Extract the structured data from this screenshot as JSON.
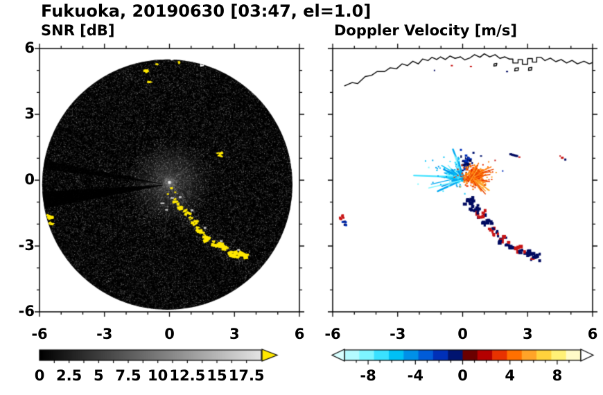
{
  "title": "Fukuoka, 20190630 [03:47, el=1.0]",
  "panels": {
    "snr": {
      "label": "SNR [dB]",
      "xticklabels": [
        "-6",
        "-3",
        "0",
        "3",
        "6"
      ],
      "yticklabels": [
        "6",
        "3",
        "0",
        "-3",
        "-6"
      ],
      "colorbar_ticklabels": [
        "0",
        "2.5",
        "5",
        "7.5",
        "10",
        "12.5",
        "15",
        "17.5"
      ]
    },
    "doppler": {
      "label": "Doppler Velocity [m/s]",
      "xticklabels": [
        "-6",
        "-3",
        "0",
        "3",
        "6"
      ],
      "colorbar_ticklabels": [
        "-8",
        "-4",
        "0",
        "4",
        "8"
      ]
    }
  },
  "chart_data": [
    {
      "type": "heatmap",
      "title": "SNR [dB]",
      "xlim": [
        -6,
        6
      ],
      "ylim": [
        -6,
        6
      ],
      "xticks": [
        -6,
        -3,
        0,
        3,
        6
      ],
      "yticks": [
        -6,
        -3,
        0,
        3,
        6
      ],
      "colorbar": {
        "range": [
          0,
          18.75
        ],
        "ticks": [
          0,
          2.5,
          5,
          7.5,
          10,
          12.5,
          15,
          17.5
        ],
        "scheme": "black-to-white grayscale with yellow overflow arrow"
      },
      "disk": {
        "center": [
          -0.1,
          -0.2
        ],
        "radius": 5.78,
        "background": "low-SNR speckle noise, brighter haze around radar at origin"
      },
      "blocked_sector_angles_deg": [
        187,
        171,
        152,
        62
      ],
      "echo_color": "#ffe800",
      "high_snr_echoes": {
        "clutter_arc": [
          [
            0.3,
            -0.95
          ],
          [
            0.55,
            -1.25
          ],
          [
            0.85,
            -1.55
          ],
          [
            1.15,
            -1.95
          ],
          [
            1.45,
            -2.35
          ],
          [
            1.8,
            -2.7
          ],
          [
            2.2,
            -2.95
          ],
          [
            2.6,
            -3.15
          ],
          [
            3.0,
            -3.35
          ],
          [
            3.35,
            -3.5
          ]
        ],
        "spots": [
          [
            2.3,
            1.15
          ],
          [
            -5.55,
            -1.7
          ],
          [
            -5.45,
            -2.0
          ],
          [
            -1.05,
            5.05
          ],
          [
            -0.92,
            4.5
          ],
          [
            -0.6,
            5.3
          ],
          [
            0.45,
            5.35
          ],
          [
            1.75,
            5.3
          ],
          [
            2.95,
            5.55
          ],
          [
            0.03,
            -0.32
          ],
          [
            0.22,
            -0.52
          ]
        ]
      },
      "coastline_color": "#ffffff",
      "coastline": {
        "main": [
          [
            -5.45,
            4.3
          ],
          [
            -5.1,
            4.45
          ],
          [
            -4.85,
            4.4
          ],
          [
            -4.5,
            4.72
          ],
          [
            -4.2,
            4.78
          ],
          [
            -3.95,
            4.95
          ],
          [
            -3.6,
            4.95
          ],
          [
            -3.35,
            5.12
          ],
          [
            -3.05,
            5.08
          ],
          [
            -2.8,
            5.3
          ],
          [
            -2.55,
            5.22
          ],
          [
            -2.3,
            5.42
          ],
          [
            -2.05,
            5.3
          ],
          [
            -1.85,
            5.52
          ],
          [
            -1.6,
            5.45
          ],
          [
            -1.42,
            5.6
          ],
          [
            -1.2,
            5.5
          ],
          [
            -1.02,
            5.62
          ],
          [
            -0.8,
            5.5
          ],
          [
            -0.58,
            5.66
          ],
          [
            -0.35,
            5.55
          ],
          [
            -0.1,
            5.62
          ],
          [
            0.1,
            5.48
          ],
          [
            0.35,
            5.58
          ],
          [
            0.55,
            5.72
          ],
          [
            0.8,
            5.6
          ],
          [
            1.0,
            5.76
          ],
          [
            1.25,
            5.62
          ],
          [
            1.5,
            5.72
          ],
          [
            1.72,
            5.55
          ],
          [
            1.95,
            5.62
          ],
          [
            2.15,
            5.52
          ]
        ],
        "harbor": [
          [
            2.15,
            5.52
          ],
          [
            2.32,
            5.52
          ],
          [
            2.32,
            5.34
          ],
          [
            2.56,
            5.34
          ],
          [
            2.56,
            5.5
          ],
          [
            2.76,
            5.5
          ],
          [
            2.76,
            5.28
          ],
          [
            3.0,
            5.28
          ],
          [
            3.0,
            5.54
          ],
          [
            3.22,
            5.54
          ],
          [
            3.22,
            5.38
          ],
          [
            3.42,
            5.38
          ],
          [
            3.42,
            5.6
          ],
          [
            3.62,
            5.6
          ],
          [
            3.8,
            5.45
          ],
          [
            4.05,
            5.56
          ],
          [
            4.3,
            5.4
          ],
          [
            4.55,
            5.5
          ],
          [
            4.8,
            5.34
          ],
          [
            5.05,
            5.46
          ],
          [
            5.3,
            5.3
          ],
          [
            5.6,
            5.42
          ],
          [
            5.85,
            5.3
          ],
          [
            6.0,
            5.36
          ]
        ],
        "islands": [
          [
            [
              2.42,
              5.1
            ],
            [
              2.58,
              5.12
            ],
            [
              2.56,
              5.0
            ],
            [
              2.4,
              4.98
            ]
          ],
          [
            [
              3.05,
              5.12
            ],
            [
              3.2,
              5.14
            ],
            [
              3.18,
              5.02
            ],
            [
              3.04,
              5.0
            ]
          ],
          [
            [
              1.45,
              5.3
            ],
            [
              1.58,
              5.32
            ],
            [
              1.56,
              5.22
            ],
            [
              1.44,
              5.2
            ]
          ]
        ]
      }
    },
    {
      "type": "scatter",
      "title": "Doppler Velocity [m/s]",
      "xlim": [
        -6,
        6
      ],
      "ylim": [
        -6,
        6
      ],
      "xticks": [
        -6,
        -3,
        0,
        3,
        6
      ],
      "yticks": [
        -6,
        -3,
        0,
        3,
        6
      ],
      "colorbar": {
        "range": [
          -10,
          10
        ],
        "ticks": [
          -8,
          -4,
          0,
          4,
          8
        ],
        "colors": [
          "#b4fbff",
          "#7df5ff",
          "#3ae1ff",
          "#00c0f5",
          "#0090e8",
          "#005cd8",
          "#0030b8",
          "#001470",
          "#6b0000",
          "#b40000",
          "#e83200",
          "#ff7000",
          "#ffa428",
          "#ffd23c",
          "#fff176",
          "#fffbc8"
        ],
        "left_arrow": "#d8ffff",
        "right_arrow": "#ffffff"
      },
      "coastline_color": "#000000",
      "velocity_colors": {
        "navy": "#000a60",
        "red": "#c81414",
        "white": "#ffffff"
      },
      "clusters": [
        {
          "name": "approaching-fan",
          "center": [
            -0.7,
            0.3
          ],
          "x_range": [
            -2.3,
            0
          ],
          "y_range": [
            -0.35,
            1.1
          ],
          "velocity_ms": [
            -8,
            -3
          ],
          "palette": [
            "#3ae1ff",
            "#00c0f5",
            "#0090e8",
            "#7df5ff",
            "#00a8f0"
          ]
        },
        {
          "name": "near-zero-negative",
          "center": [
            0.18,
            0.8
          ],
          "velocity_ms": [
            -2,
            0
          ],
          "palette": [
            "#001470",
            "#0030b8",
            "#000a50"
          ]
        },
        {
          "name": "receding-core",
          "center": [
            0.55,
            0.18
          ],
          "velocity_ms": [
            2,
            6
          ],
          "palette": [
            "#ff7000",
            "#e84400",
            "#ffa428",
            "#ff8a1c",
            "#e83200"
          ]
        }
      ],
      "clutter_arc": {
        "points": [
          [
            0.3,
            -0.95
          ],
          [
            0.55,
            -1.25
          ],
          [
            0.85,
            -1.55
          ],
          [
            1.15,
            -1.95
          ],
          [
            1.45,
            -2.35
          ],
          [
            1.8,
            -2.7
          ],
          [
            2.2,
            -2.95
          ],
          [
            2.6,
            -3.15
          ],
          [
            3.0,
            -3.35
          ],
          [
            3.35,
            -3.5
          ]
        ],
        "kinds": [
          "navy",
          "navy",
          "mix",
          "navy",
          "mix",
          "red",
          "navy",
          "mix",
          "navy",
          "navy"
        ]
      },
      "spots": [
        {
          "p": [
            -5.58,
            -1.68
          ],
          "color": "red"
        },
        {
          "p": [
            -5.47,
            -1.98
          ],
          "color": "blue"
        },
        {
          "p": [
            2.35,
            1.15
          ],
          "color": "navy"
        },
        {
          "p": [
            4.65,
            1.0
          ],
          "color": "red-navy"
        },
        {
          "p": [
            -0.5,
            5.22
          ],
          "color": "red"
        },
        {
          "p": [
            0.38,
            5.18
          ],
          "color": "red"
        },
        {
          "p": [
            2.05,
            4.95
          ],
          "color": "navy"
        }
      ]
    }
  ]
}
